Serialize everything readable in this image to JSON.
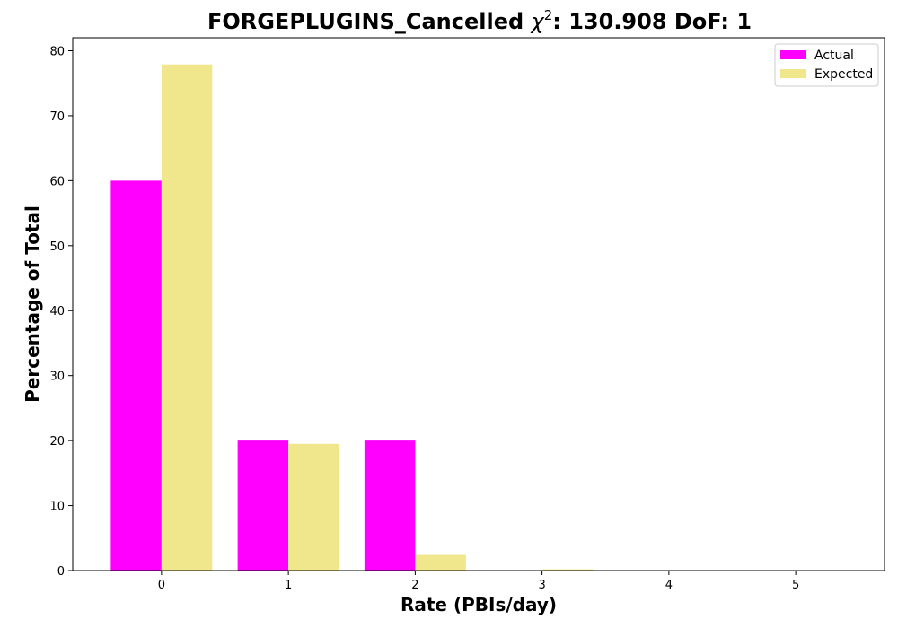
{
  "chart_data": {
    "type": "bar",
    "title_main": "FORGEPLUGINS_Cancelled ",
    "title_chi": "χ",
    "title_sup": "2",
    "title_tail": ": 130.908 DoF: 1",
    "xlabel": "Rate (PBIs/day)",
    "ylabel": "Percentage of Total",
    "categories": [
      "0",
      "1",
      "2",
      "3",
      "4",
      "5"
    ],
    "x": [
      0,
      1,
      2,
      3,
      4,
      5
    ],
    "ylim": [
      0,
      82
    ],
    "xlim": [
      -0.7,
      5.7
    ],
    "yticks": [
      0,
      10,
      20,
      30,
      40,
      50,
      60,
      70,
      80
    ],
    "grid": false,
    "legend_position": "top-right",
    "series": [
      {
        "name": "Actual",
        "color": "#ff00ff",
        "values": [
          60,
          20,
          20,
          0,
          0,
          0
        ]
      },
      {
        "name": "Expected",
        "color": "#f0e68c",
        "values": [
          77.9,
          19.5,
          2.4,
          0.2,
          0.0,
          0.0
        ]
      }
    ]
  }
}
